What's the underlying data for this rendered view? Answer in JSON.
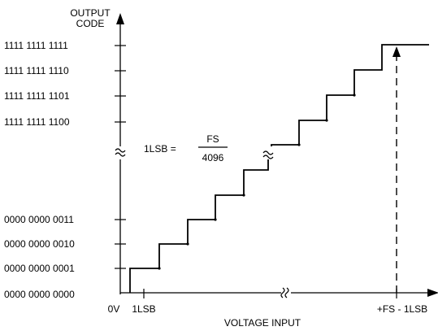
{
  "y_axis": {
    "label_line1": "OUTPUT",
    "label_line2": "CODE"
  },
  "x_axis": {
    "label": "VOLTAGE INPUT",
    "origin_label": "0V",
    "lsb_label": "1LSB",
    "fs_label": "+FS - 1LSB"
  },
  "output_codes": {
    "upper": [
      "1111 1111 1111",
      "1111 1111 1110",
      "1111 1111 1101",
      "1111 1111 1100"
    ],
    "lower": [
      "0000 0000 0011",
      "0000 0000 0010",
      "0000 0000 0001",
      "0000 0000 0000"
    ]
  },
  "formula": {
    "lhs": "1LSB =",
    "numerator": "FS",
    "denominator": "4096"
  },
  "colors": {
    "line": "#000000",
    "background": "#ffffff"
  }
}
